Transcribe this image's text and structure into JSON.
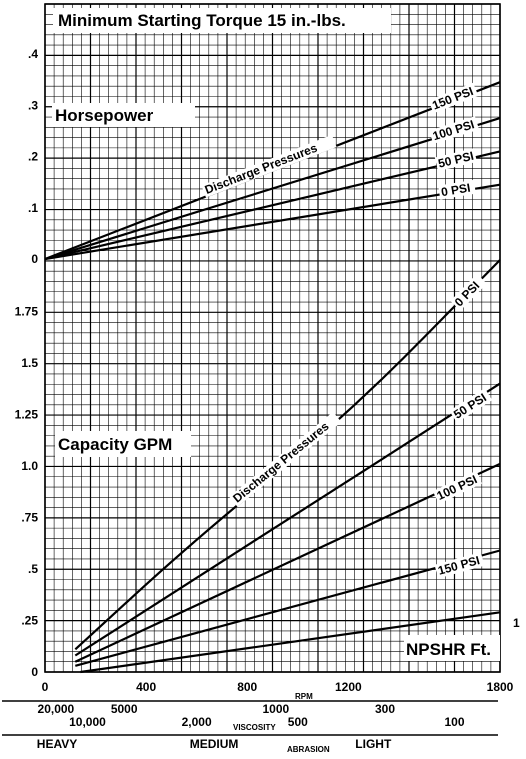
{
  "chart_data": {
    "type": "line",
    "title": "Minimum Starting Torque 15 in.-lbs.",
    "x_axis": {
      "label": "RPM",
      "ticks": [
        0,
        400,
        800,
        1200,
        1800
      ],
      "tick_labels": [
        "0",
        "400",
        "800",
        "1200",
        "1800"
      ],
      "range": [
        0,
        1800
      ]
    },
    "horsepower_panel": {
      "label": "Horsepower",
      "y_ticks": [
        0,
        0.1,
        0.2,
        0.3,
        0.4
      ],
      "y_tick_labels": [
        "0",
        ".1",
        ".2",
        ".3",
        ".4"
      ],
      "ylim": [
        0,
        0.44
      ],
      "annotation": "Discharge Pressures",
      "series": [
        {
          "name": "150 PSI",
          "x": [
            0,
            1800
          ],
          "y": [
            0,
            0.345
          ]
        },
        {
          "name": "100 PSI",
          "x": [
            0,
            1800
          ],
          "y": [
            0,
            0.275
          ]
        },
        {
          "name": "50 PSI",
          "x": [
            0,
            1800
          ],
          "y": [
            0,
            0.21
          ]
        },
        {
          "name": "0 PSI",
          "x": [
            0,
            1800
          ],
          "y": [
            0,
            0.145
          ]
        }
      ]
    },
    "capacity_panel": {
      "label": "Capacity GPM",
      "y_ticks": [
        0,
        0.25,
        0.5,
        0.75,
        1.0,
        1.25,
        1.5,
        1.75
      ],
      "y_tick_labels": [
        "0",
        ".25",
        ".5",
        ".75",
        "1.0",
        "1.25",
        "1.5",
        "1.75"
      ],
      "ylim": [
        0,
        2.0
      ],
      "annotation": "Discharge Pressures",
      "series": [
        {
          "name": "0 PSI",
          "x": [
            120,
            600,
            1200,
            1800
          ],
          "y": [
            0.11,
            0.65,
            1.25,
            2.0
          ]
        },
        {
          "name": "50 PSI",
          "x": [
            120,
            1800
          ],
          "y": [
            0.08,
            1.4
          ]
        },
        {
          "name": "100 PSI",
          "x": [
            120,
            1800
          ],
          "y": [
            0.05,
            1.01
          ]
        },
        {
          "name": "150 PSI",
          "x": [
            120,
            1800
          ],
          "y": [
            0.03,
            0.59
          ]
        }
      ],
      "npshr": {
        "label": "NPSHR Ft.",
        "end_label": "1",
        "x": [
          140,
          1800
        ],
        "y": [
          0.0,
          0.29
        ]
      }
    },
    "grid": true
  },
  "scales": {
    "viscosity_label": "VISCOSITY",
    "viscosity_row1": [
      {
        "text": "20,000",
        "rpm": 10
      },
      {
        "text": "5000",
        "rpm": 300
      },
      {
        "text": "1000",
        "rpm": 900
      },
      {
        "text": "300",
        "rpm": 1345
      }
    ],
    "viscosity_row2": [
      {
        "text": "10,000",
        "rpm": 135
      },
      {
        "text": "2,000",
        "rpm": 580
      },
      {
        "text": "500",
        "rpm": 1000
      },
      {
        "text": "100",
        "rpm": 1620
      }
    ],
    "abrasion_label": "ABRASION",
    "abrasion": [
      {
        "text": "HEAVY",
        "rpm": 15
      },
      {
        "text": "MEDIUM",
        "rpm": 620
      },
      {
        "text": "LIGHT",
        "rpm": 1275
      }
    ]
  }
}
